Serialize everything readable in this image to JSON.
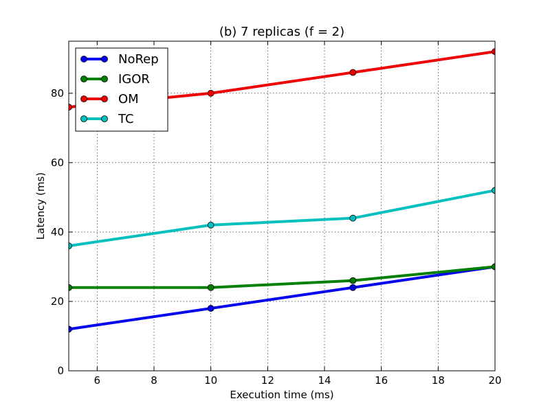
{
  "chart_data": {
    "type": "line",
    "title": "(b) 7 replicas (f = 2)",
    "xlabel": "Execution time (ms)",
    "ylabel": "Latency (ms)",
    "xlim": [
      5,
      20
    ],
    "ylim": [
      0,
      95
    ],
    "xticks": [
      6,
      8,
      10,
      12,
      14,
      16,
      18,
      20
    ],
    "yticks": [
      0,
      20,
      40,
      60,
      80
    ],
    "grid": true,
    "legend_position": "top-left",
    "x": [
      5,
      10,
      15,
      20
    ],
    "series": [
      {
        "name": "NoRep",
        "color": "#0000ee",
        "values": [
          12,
          18,
          24,
          30
        ]
      },
      {
        "name": "IGOR",
        "color": "#007f00",
        "values": [
          24,
          24,
          26,
          30
        ]
      },
      {
        "name": "OM",
        "color": "#ee0000",
        "values": [
          76,
          80,
          86,
          92
        ]
      },
      {
        "name": "TC",
        "color": "#00bfbf",
        "values": [
          36,
          42,
          44,
          52
        ]
      }
    ]
  }
}
